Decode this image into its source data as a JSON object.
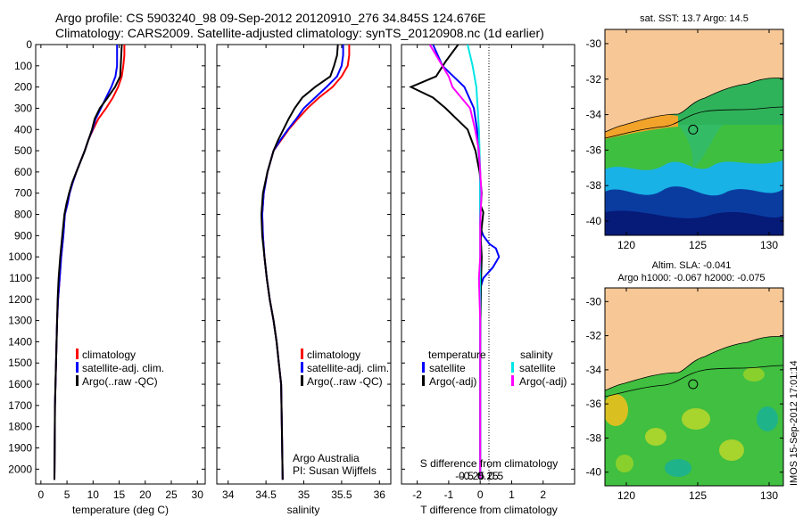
{
  "header": {
    "line1": "Argo profile: CS 5903240_98 09-Sep-2012 20120910_276 34.845S 124.676E",
    "line2": "Climatology: CARS2009. Satellite-adjusted climatology: synTS_20120908.nc (1d earlier)"
  },
  "colors": {
    "climatology": "#ff0000",
    "satellite": "#0000ff",
    "argo": "#000000",
    "satellite_s": "#00e5e5",
    "argo_s": "#ff00ff",
    "land": "#f7c896"
  },
  "chart_data": [
    {
      "type": "line",
      "name": "temperature",
      "xlabel": "temperature (deg C)",
      "ylabel": "",
      "xlim": [
        -1,
        31.5
      ],
      "ylim": [
        2070,
        0
      ],
      "xticks": [
        0,
        5,
        10,
        15,
        20,
        25,
        30
      ],
      "yticks": [
        0,
        100,
        200,
        300,
        400,
        500,
        600,
        700,
        800,
        900,
        1000,
        1100,
        1200,
        1300,
        1400,
        1500,
        1600,
        1700,
        1800,
        1900,
        2000
      ],
      "legend": {
        "position": "bottom-right",
        "entries": [
          "climatology",
          "satellite-adj. clim.",
          "Argo(..raw -QC)"
        ]
      },
      "series": [
        {
          "name": "climatology",
          "color": "#ff0000",
          "x": [
            16,
            16,
            15.8,
            15.5,
            14.8,
            13.8,
            12.5,
            11,
            10,
            9.1,
            8.4,
            7.6,
            6.8,
            6.1,
            5.5,
            5.1,
            4.6,
            4.3,
            3.9,
            3.6,
            3.3,
            3.1,
            3.0,
            2.9,
            2.8,
            2.7,
            2.65,
            2.6
          ],
          "y": [
            0,
            50,
            100,
            150,
            200,
            250,
            300,
            350,
            400,
            450,
            500,
            550,
            600,
            650,
            700,
            750,
            800,
            900,
            1000,
            1100,
            1200,
            1300,
            1400,
            1500,
            1600,
            1700,
            1900,
            2050
          ]
        },
        {
          "name": "satellite-adj. clim.",
          "color": "#0000ff",
          "x": [
            14.6,
            14.6,
            14.6,
            14.3,
            13.5,
            12.5,
            11.5,
            10.5,
            9.9,
            9.1,
            8.4,
            7.6,
            6.8,
            6.1,
            5.5,
            5.1,
            4.6,
            4.3,
            3.9,
            3.6,
            3.3,
            3.1,
            3.0,
            2.9,
            2.8,
            2.7,
            2.65,
            2.6
          ],
          "y": [
            0,
            50,
            100,
            150,
            200,
            250,
            300,
            350,
            400,
            450,
            500,
            550,
            600,
            650,
            700,
            750,
            800,
            900,
            1000,
            1100,
            1200,
            1300,
            1400,
            1500,
            1600,
            1700,
            1900,
            2050
          ]
        },
        {
          "name": "Argo(..raw -QC)",
          "color": "#000000",
          "x": [
            15.5,
            15.4,
            15.3,
            15.2,
            14.2,
            12.8,
            11.3,
            10.3,
            9.8,
            9.1,
            8.4,
            7.6,
            6.8,
            6.0,
            5.4,
            4.9,
            4.5,
            4.1,
            3.7,
            3.4,
            3.2,
            3.1,
            3.0,
            2.9,
            2.8,
            2.7,
            2.65,
            2.6
          ],
          "y": [
            0,
            50,
            100,
            150,
            200,
            250,
            300,
            350,
            400,
            450,
            500,
            550,
            600,
            650,
            700,
            750,
            800,
            900,
            1000,
            1100,
            1200,
            1300,
            1400,
            1500,
            1600,
            1700,
            1900,
            2050
          ]
        }
      ]
    },
    {
      "type": "line",
      "name": "salinity",
      "xlabel": "salinity",
      "ylabel": "",
      "xlim": [
        33.85,
        36.15
      ],
      "ylim": [
        2070,
        0
      ],
      "xticks": [
        34,
        34.5,
        35,
        35.5,
        36
      ],
      "xticklabels": [
        "34",
        "34.5",
        "35",
        "35.5",
        "36"
      ],
      "legend": {
        "position": "bottom-right",
        "entries": [
          "climatology",
          "satellite-adj. clim.",
          "Argo(..raw -QC)"
        ]
      },
      "annotation_line1": "Argo Australia",
      "annotation_line2": "PI: Susan Wijffels",
      "series": [
        {
          "name": "climatology",
          "color": "#ff0000",
          "x": [
            35.6,
            35.6,
            35.58,
            35.5,
            35.38,
            35.2,
            35.05,
            34.92,
            34.8,
            34.7,
            34.6,
            34.52,
            34.47,
            34.45,
            34.46,
            34.48,
            34.51,
            34.55,
            34.6,
            34.64,
            34.67,
            34.7,
            34.71,
            34.72
          ],
          "y": [
            0,
            50,
            100,
            150,
            200,
            250,
            300,
            350,
            400,
            450,
            500,
            600,
            700,
            800,
            900,
            1000,
            1100,
            1200,
            1300,
            1400,
            1500,
            1600,
            1800,
            2050
          ]
        },
        {
          "name": "satellite-adj. clim.",
          "color": "#0000ff",
          "x": [
            35.52,
            35.52,
            35.5,
            35.44,
            35.3,
            35.15,
            35.0,
            34.9,
            34.79,
            34.69,
            34.6,
            34.52,
            34.47,
            34.45,
            34.46,
            34.48,
            34.51,
            34.55,
            34.6,
            34.64,
            34.67,
            34.7,
            34.71,
            34.72
          ],
          "y": [
            0,
            50,
            100,
            150,
            200,
            250,
            300,
            350,
            400,
            450,
            500,
            600,
            700,
            800,
            900,
            1000,
            1100,
            1200,
            1300,
            1400,
            1500,
            1600,
            1800,
            2050
          ]
        },
        {
          "name": "Argo(..raw -QC)",
          "color": "#000000",
          "x": [
            35.45,
            35.44,
            35.4,
            35.35,
            35.15,
            34.98,
            34.88,
            34.8,
            34.73,
            34.66,
            34.6,
            34.52,
            34.46,
            34.44,
            34.45,
            34.48,
            34.51,
            34.55,
            34.6,
            34.64,
            34.67,
            34.7,
            34.71,
            34.72
          ],
          "y": [
            0,
            50,
            100,
            150,
            200,
            250,
            300,
            350,
            400,
            450,
            500,
            600,
            700,
            800,
            900,
            1000,
            1100,
            1200,
            1300,
            1400,
            1500,
            1600,
            1800,
            2050
          ]
        }
      ]
    },
    {
      "type": "line",
      "name": "difference",
      "xlabel": "T difference from climatology",
      "top_label": "S difference from climatology",
      "xlim": [
        -2.5,
        3.0
      ],
      "ylim": [
        2070,
        0
      ],
      "xticks": [
        -2,
        -1,
        0,
        1,
        2
      ],
      "xticklabels": [
        "-2",
        "-1",
        "0",
        "1",
        "2"
      ],
      "s_xticks": [
        -0.5,
        -0.25,
        0,
        0.25,
        0.5
      ],
      "s_xticklabels": [
        "-0.5",
        "-0.25",
        "0",
        "0.25",
        "0.5"
      ],
      "legend": {
        "position": "bottom",
        "temperature_title": "temperature",
        "salinity_title": "salinity",
        "entries": [
          "satellite",
          "Argo(-adj)",
          "satellite",
          "Argo(-adj)"
        ]
      },
      "series": [
        {
          "name": "T satellite",
          "color": "#0000ff",
          "x": [
            -1.5,
            -1.2,
            -0.5,
            -0.2,
            -0.1,
            -0.05,
            0,
            0,
            0,
            0,
            0.05,
            0.1,
            0.2,
            0.3,
            0.5,
            0.6,
            0.4,
            0.1,
            0,
            0,
            0,
            0
          ],
          "y": [
            0,
            100,
            200,
            300,
            400,
            500,
            600,
            700,
            780,
            850,
            880,
            900,
            920,
            940,
            960,
            1000,
            1050,
            1100,
            1150,
            1300,
            1600,
            2050
          ]
        },
        {
          "name": "T Argo(-adj)",
          "color": "#000000",
          "x": [
            -0.7,
            -1.1,
            -1.4,
            -2.2,
            -1.5,
            -1.1,
            -0.4,
            -0.15,
            -0.02,
            0.05,
            0.02,
            0.1,
            0.05,
            0.02,
            0.05,
            0.03,
            0.02,
            0.01,
            0,
            0
          ],
          "y": [
            0,
            80,
            150,
            200,
            250,
            300,
            400,
            500,
            600,
            700,
            760,
            790,
            860,
            920,
            1000,
            1100,
            1200,
            1300,
            1500,
            2050
          ]
        },
        {
          "name": "S satellite",
          "color": "#00e5e5",
          "x": [
            -0.1,
            -0.06,
            -0.03,
            -0.02,
            -0.01,
            0,
            0,
            0,
            0,
            0,
            0
          ],
          "y": [
            0,
            100,
            200,
            300,
            400,
            600,
            800,
            1000,
            1300,
            1600,
            2050
          ]
        },
        {
          "name": "S Argo(-adj)",
          "color": "#ff00ff",
          "x": [
            -0.4,
            -0.25,
            -0.22,
            -0.15,
            -0.08,
            -0.04,
            -0.01,
            0.01,
            0,
            0,
            -0.01,
            0,
            0
          ],
          "y": [
            0,
            150,
            200,
            250,
            300,
            400,
            500,
            700,
            850,
            1000,
            1100,
            1300,
            2050
          ]
        }
      ]
    },
    {
      "type": "heatmap",
      "name": "sst-map",
      "title": "sat. SST: 13.7 Argo: 14.5",
      "xlim": [
        118.5,
        131
      ],
      "ylim": [
        -40.8,
        -29.2
      ],
      "xticks": [
        120,
        125,
        130
      ],
      "yticks": [
        -30,
        -32,
        -34,
        -36,
        -38,
        -40
      ],
      "argo_position": {
        "lon": 124.676,
        "lat": -34.845
      }
    },
    {
      "type": "heatmap",
      "name": "sla-map",
      "title_line1": "Altim. SLA: -0.041",
      "title_line2": "Argo h1000: -0.067 h2000: -0.075",
      "xlim": [
        118.5,
        131
      ],
      "ylim": [
        -40.8,
        -29.2
      ],
      "xticks": [
        120,
        125,
        130
      ],
      "yticks": [
        -30,
        -32,
        -34,
        -36,
        -38,
        -40
      ],
      "argo_position": {
        "lon": 124.676,
        "lat": -34.845
      }
    }
  ],
  "footer": {
    "vertical_stamp": "IMOS 15-Sep-2012 17:01:14"
  }
}
